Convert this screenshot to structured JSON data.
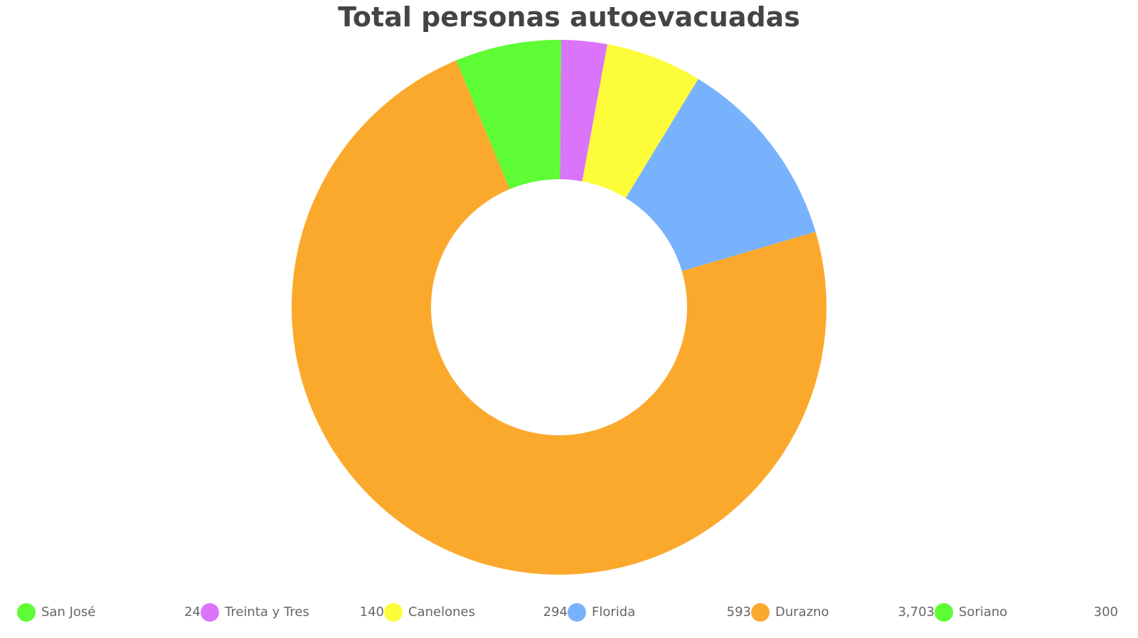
{
  "chart_data": {
    "type": "pie",
    "title": "Total personas autoevacuadas",
    "donut": true,
    "categories": [
      "San José",
      "Treinta y Tres",
      "Canelones",
      "Florida",
      "Durazno",
      "Soriano"
    ],
    "values": [
      24,
      140,
      294,
      593,
      3703,
      300
    ],
    "value_labels": [
      "24",
      "140",
      "294",
      "593",
      "3,703",
      "300"
    ],
    "colors": [
      "#5dfc34",
      "#da74fb",
      "#fdfc3a",
      "#79b2fc",
      "#fba92c",
      "#5dfc34"
    ],
    "legend": "bottom"
  }
}
